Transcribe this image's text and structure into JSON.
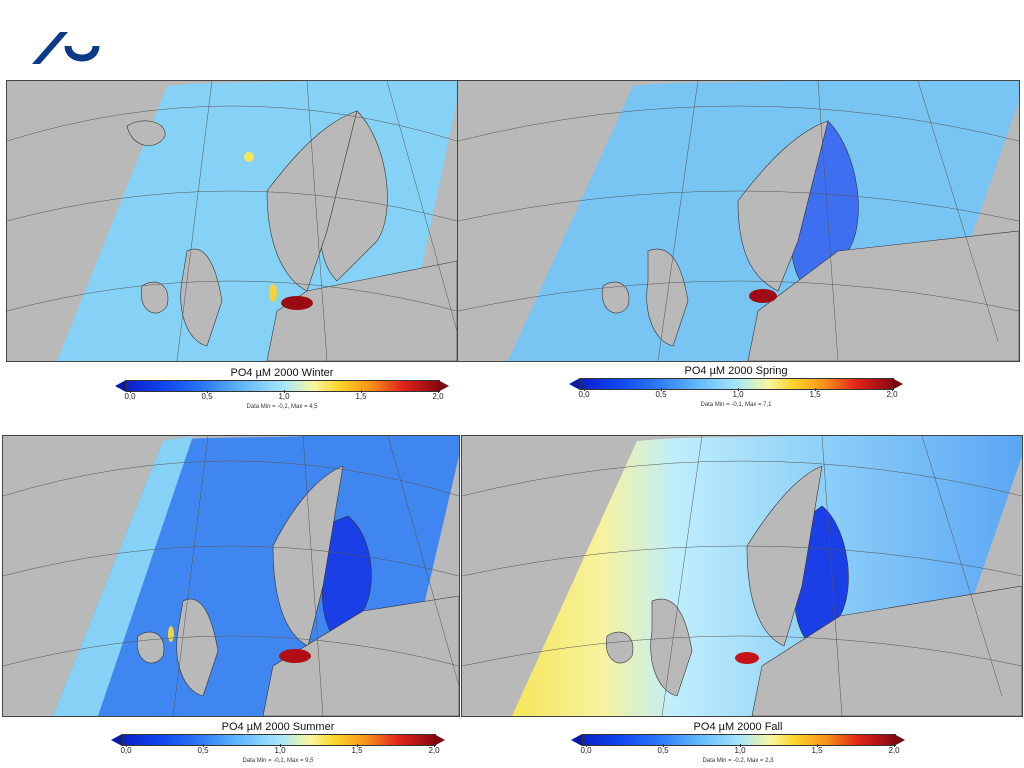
{
  "logo": {
    "icon": "university-logo-icon",
    "color": "#0b3b86"
  },
  "panels": [
    {
      "title": "PO4 µM 2000 Winter",
      "season": "Winter",
      "data_range_text": "Data Min = -0,2, Max = 4,5",
      "sea_color": "#86d2f6",
      "accent_color": "#f6d33a",
      "hot_color": "#9a0b14"
    },
    {
      "title": "PO4 µM 2000 Spring",
      "season": "Spring",
      "data_range_text": "Data Min = -0,1, Max = 7,1",
      "sea_color": "#78c4f3",
      "accent_color": "#3e6ff0",
      "hot_color": "#a00c16"
    },
    {
      "title": "PO4 µM 2000 Summer",
      "season": "Summer",
      "data_range_text": "Data Min = -0,1, Max = 9,5",
      "sea_color": "#3f86f1",
      "accent_color": "#1a3fe6",
      "hot_color": "#b00d14"
    },
    {
      "title": "PO4 µM 2000 Fall",
      "season": "Fall",
      "data_range_text": "Data Min = -0,2, Max = 2,3",
      "sea_color": "#a6e4fb",
      "accent_color": "#f6e65a",
      "hot_color": "#c4141a"
    }
  ],
  "legend": {
    "ticks": [
      "0,0",
      "0,5",
      "1,0",
      "1,5",
      "2,0"
    ],
    "gradient_colors": [
      "#0a22c8",
      "#2a76f6",
      "#a6e6fb",
      "#fbd52a",
      "#e2261a",
      "#8a0612"
    ]
  }
}
